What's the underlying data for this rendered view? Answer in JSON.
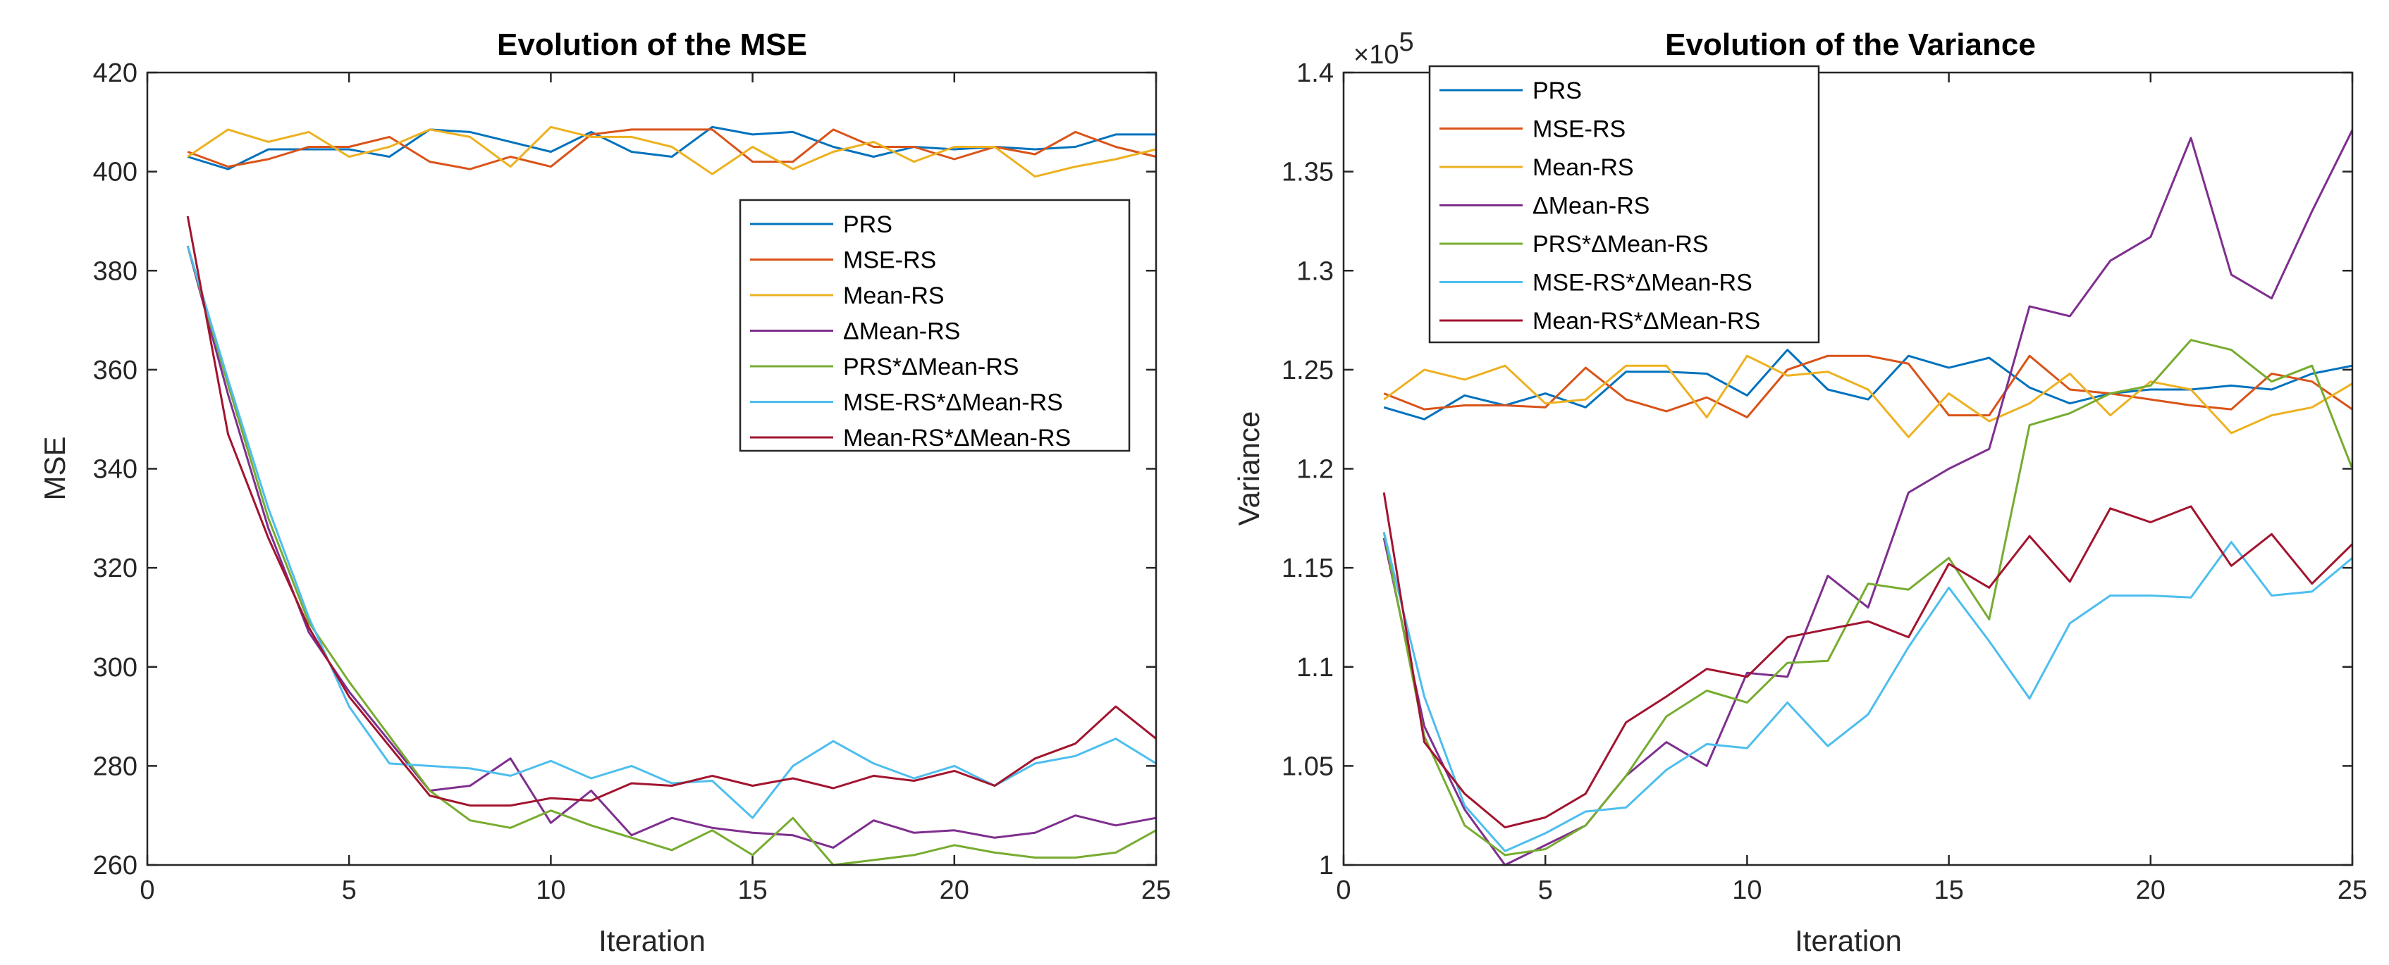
{
  "chart_data": [
    {
      "type": "line",
      "title": "Evolution of the MSE",
      "xlabel": "Iteration",
      "ylabel": "MSE",
      "xlim": [
        0,
        25
      ],
      "ylim": [
        260,
        420
      ],
      "xticks": [
        0,
        5,
        10,
        15,
        20,
        25
      ],
      "xtick_labels": [
        "0",
        "5",
        "10",
        "15",
        "20",
        "25"
      ],
      "yticks": [
        260,
        280,
        300,
        320,
        340,
        360,
        380,
        400,
        420
      ],
      "ytick_labels": [
        "260",
        "280",
        "300",
        "320",
        "340",
        "360",
        "380",
        "400",
        "420"
      ],
      "legend_position": "center-right",
      "x": [
        1,
        2,
        3,
        4,
        5,
        6,
        7,
        8,
        9,
        10,
        11,
        12,
        13,
        14,
        15,
        16,
        17,
        18,
        19,
        20,
        21,
        22,
        23,
        24,
        25
      ],
      "series": [
        {
          "name": "PRS",
          "color": "#0072BD",
          "values": [
            403,
            400.5,
            404.5,
            404.5,
            404.5,
            403,
            408.5,
            408,
            406,
            404,
            408,
            404,
            403,
            409,
            407.5,
            408,
            405,
            403,
            405,
            404.5,
            405,
            404.5,
            405,
            407.5,
            407.5
          ]
        },
        {
          "name": "MSE-RS",
          "color": "#D95319",
          "values": [
            404,
            401,
            402.5,
            405,
            405,
            407,
            402,
            400.5,
            403,
            401,
            407.5,
            408.5,
            408.5,
            408.5,
            402,
            402,
            408.5,
            405,
            405,
            402.5,
            405,
            403.5,
            408,
            405,
            403
          ]
        },
        {
          "name": "Mean-RS",
          "color": "#EDB120",
          "values": [
            403,
            408.5,
            406,
            408,
            403,
            405,
            408.5,
            407,
            401,
            409,
            407,
            407,
            405,
            399.5,
            405,
            400.5,
            404,
            406,
            402,
            405,
            405,
            399,
            401,
            402.5,
            404.5
          ]
        },
        {
          "name": "ΔMean-RS",
          "color": "#7E2F8E",
          "values": [
            385,
            355,
            328,
            307,
            295,
            285,
            275,
            276,
            281.5,
            268.5,
            275,
            266,
            269.5,
            267.5,
            266.5,
            266,
            263.5,
            269,
            266.5,
            267,
            265.5,
            266.5,
            270,
            268,
            269.5
          ]
        },
        {
          "name": "PRS*ΔMean-RS",
          "color": "#77AC30",
          "values": [
            385,
            357,
            330,
            309,
            297,
            286,
            275,
            269,
            267.5,
            271,
            268,
            265.5,
            263,
            267,
            262,
            269.5,
            260,
            261,
            262,
            264,
            262.5,
            261.5,
            261.5,
            262.5,
            267
          ]
        },
        {
          "name": "MSE-RS*ΔMean-RS",
          "color": "#4DBEEE",
          "values": [
            385,
            358,
            332,
            310,
            292,
            280.5,
            280,
            279.5,
            278,
            281,
            277.5,
            280,
            276.5,
            277,
            269.5,
            280,
            285,
            280.5,
            277.5,
            280,
            276,
            280.5,
            282,
            285.5,
            280.5
          ]
        },
        {
          "name": "Mean-RS*ΔMean-RS",
          "color": "#A2142F",
          "values": [
            391,
            347,
            326,
            308,
            294,
            284,
            274,
            272,
            272,
            273.5,
            273,
            276.5,
            276,
            278,
            276,
            277.5,
            275.5,
            278,
            277,
            279,
            276,
            281.5,
            284.5,
            292,
            285.5
          ]
        }
      ]
    },
    {
      "type": "line",
      "title": "Evolution of the Variance",
      "xlabel": "Iteration",
      "ylabel": "Variance",
      "exponent_label": "×10",
      "exponent_power": "5",
      "xlim": [
        0,
        25
      ],
      "ylim": [
        1.0,
        1.4
      ],
      "xticks": [
        0,
        5,
        10,
        15,
        20,
        25
      ],
      "xtick_labels": [
        "0",
        "5",
        "10",
        "15",
        "20",
        "25"
      ],
      "yticks": [
        1.0,
        1.05,
        1.1,
        1.15,
        1.2,
        1.25,
        1.3,
        1.35,
        1.4
      ],
      "ytick_labels": [
        "1",
        "1.05",
        "1.1",
        "1.15",
        "1.2",
        "1.25",
        "1.3",
        "1.35",
        "1.4"
      ],
      "legend_position": "top-left",
      "x": [
        1,
        2,
        3,
        4,
        5,
        6,
        7,
        8,
        9,
        10,
        11,
        12,
        13,
        14,
        15,
        16,
        17,
        18,
        19,
        20,
        21,
        22,
        23,
        24,
        25
      ],
      "series": [
        {
          "name": "PRS",
          "color": "#0072BD",
          "values": [
            1.231,
            1.225,
            1.237,
            1.232,
            1.238,
            1.231,
            1.249,
            1.249,
            1.248,
            1.237,
            1.26,
            1.24,
            1.235,
            1.257,
            1.251,
            1.256,
            1.241,
            1.233,
            1.238,
            1.24,
            1.24,
            1.242,
            1.24,
            1.248,
            1.252
          ]
        },
        {
          "name": "MSE-RS",
          "color": "#D95319",
          "values": [
            1.238,
            1.23,
            1.232,
            1.232,
            1.231,
            1.251,
            1.235,
            1.229,
            1.236,
            1.226,
            1.25,
            1.257,
            1.257,
            1.253,
            1.227,
            1.227,
            1.257,
            1.24,
            1.238,
            1.235,
            1.232,
            1.23,
            1.248,
            1.244,
            1.23
          ]
        },
        {
          "name": "Mean-RS",
          "color": "#EDB120",
          "values": [
            1.235,
            1.25,
            1.245,
            1.252,
            1.233,
            1.235,
            1.252,
            1.252,
            1.226,
            1.257,
            1.247,
            1.249,
            1.24,
            1.216,
            1.238,
            1.224,
            1.233,
            1.248,
            1.227,
            1.244,
            1.24,
            1.218,
            1.227,
            1.231,
            1.243
          ]
        },
        {
          "name": "ΔMean-RS",
          "color": "#7E2F8E",
          "values": [
            1.165,
            1.07,
            1.028,
            1.0,
            1.01,
            1.02,
            1.045,
            1.062,
            1.05,
            1.097,
            1.095,
            1.146,
            1.13,
            1.188,
            1.2,
            1.21,
            1.282,
            1.277,
            1.305,
            1.317,
            1.367,
            1.298,
            1.286,
            1.33,
            1.371
          ]
        },
        {
          "name": "PRS*ΔMean-RS",
          "color": "#77AC30",
          "values": [
            1.168,
            1.065,
            1.02,
            1.005,
            1.008,
            1.02,
            1.045,
            1.075,
            1.088,
            1.082,
            1.102,
            1.103,
            1.142,
            1.139,
            1.155,
            1.124,
            1.222,
            1.228,
            1.238,
            1.242,
            1.265,
            1.26,
            1.244,
            1.252,
            1.2
          ]
        },
        {
          "name": "MSE-RS*ΔMean-RS",
          "color": "#4DBEEE",
          "values": [
            1.168,
            1.085,
            1.03,
            1.007,
            1.016,
            1.027,
            1.029,
            1.048,
            1.061,
            1.059,
            1.082,
            1.06,
            1.076,
            1.11,
            1.14,
            1.113,
            1.084,
            1.122,
            1.136,
            1.136,
            1.135,
            1.163,
            1.136,
            1.138,
            1.155
          ]
        },
        {
          "name": "Mean-RS*ΔMean-RS",
          "color": "#A2142F",
          "values": [
            1.188,
            1.062,
            1.036,
            1.019,
            1.024,
            1.036,
            1.072,
            1.085,
            1.099,
            1.095,
            1.115,
            1.119,
            1.123,
            1.115,
            1.152,
            1.14,
            1.166,
            1.143,
            1.18,
            1.173,
            1.181,
            1.151,
            1.167,
            1.142,
            1.162
          ]
        }
      ]
    }
  ]
}
